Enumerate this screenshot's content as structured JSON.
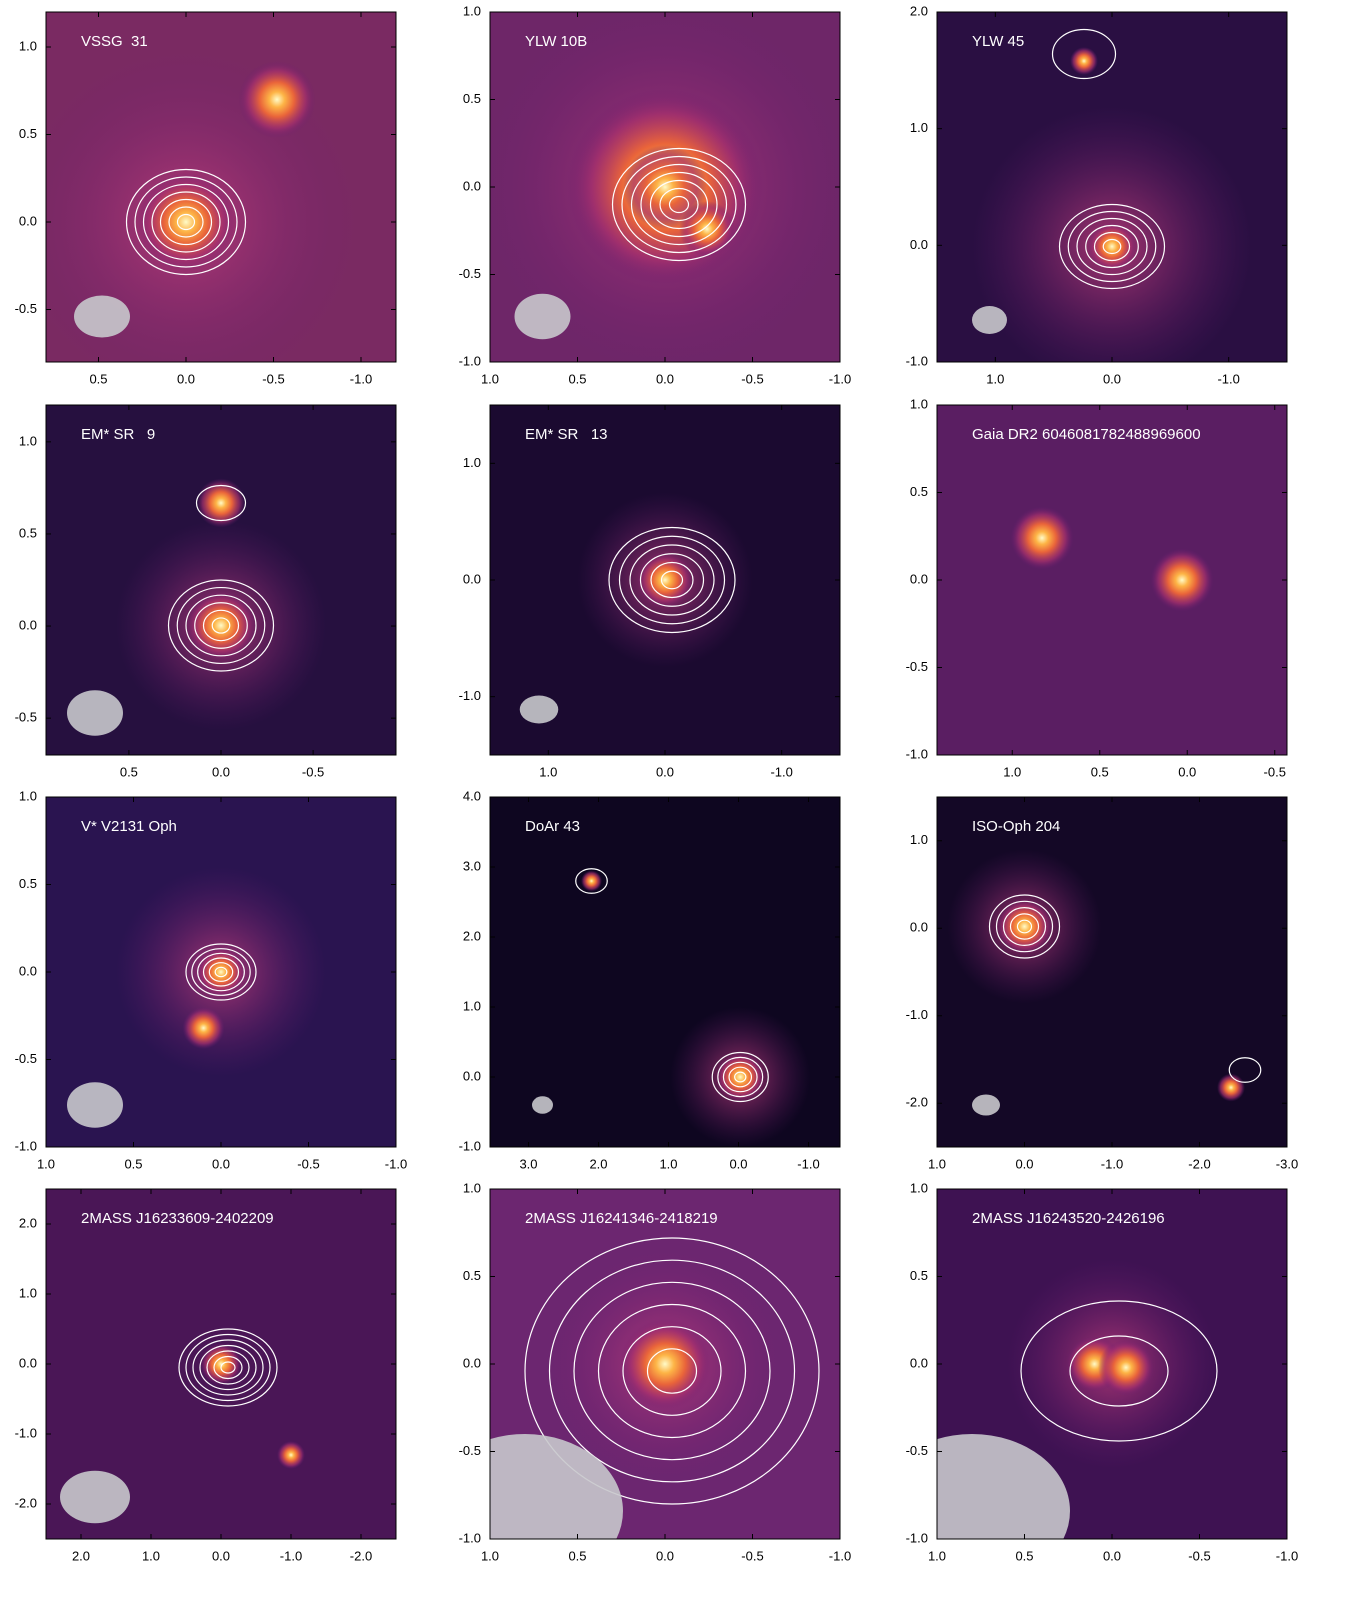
{
  "chart_data": [
    {
      "type": "image",
      "title": "VSSG  31",
      "xlim": [
        0.8,
        -1.2
      ],
      "ylim": [
        -0.8,
        1.2
      ],
      "xticks": [
        0.5,
        {
          "value": 0,
          "label": "0.0"
        },
        -0.5,
        {
          "value": -1,
          "label": "-1.0"
        }
      ],
      "yticks": [
        -0.5,
        {
          "value": 0,
          "label": "0.0"
        },
        0.5,
        {
          "value": 1,
          "label": "1.0"
        }
      ]
    },
    {
      "type": "image",
      "title": "YLW 10B",
      "xlim": [
        1,
        -1
      ],
      "ylim": [
        -1,
        1
      ],
      "xticks": [
        {
          "value": 1,
          "label": "1.0"
        },
        0.5,
        {
          "value": 0,
          "label": "0.0"
        },
        -0.5,
        {
          "value": -1,
          "label": "-1.0"
        }
      ],
      "yticks": [
        {
          "value": -1,
          "label": "-1.0"
        },
        -0.5,
        {
          "value": 0,
          "label": "0.0"
        },
        0.5,
        {
          "value": 1,
          "label": "1.0"
        }
      ]
    },
    {
      "type": "image",
      "title": "YLW 45",
      "xlim": [
        1.5,
        -1.5
      ],
      "ylim": [
        -1,
        2
      ],
      "xticks": [
        {
          "value": 1,
          "label": "1.0"
        },
        {
          "value": 0,
          "label": "0.0"
        },
        {
          "value": -1,
          "label": "-1.0"
        }
      ],
      "yticks": [
        {
          "value": -1,
          "label": "-1.0"
        },
        {
          "value": 0,
          "label": "0.0"
        },
        {
          "value": 1,
          "label": "1.0"
        },
        {
          "value": 2,
          "label": "2.0"
        }
      ]
    },
    {
      "type": "image",
      "title": "EM* SR   9",
      "xlim": [
        0.95,
        -0.95
      ],
      "ylim": [
        -0.7,
        1.2
      ],
      "xticks": [
        0.5,
        {
          "value": 0,
          "label": "0.0"
        },
        -0.5
      ],
      "yticks": [
        -0.5,
        {
          "value": 0,
          "label": "0.0"
        },
        0.5,
        {
          "value": 1,
          "label": "1.0"
        }
      ]
    },
    {
      "type": "image",
      "title": "EM* SR   13",
      "xlim": [
        1.5,
        -1.5
      ],
      "ylim": [
        -1.5,
        1.5
      ],
      "xticks": [
        {
          "value": 1,
          "label": "1.0"
        },
        {
          "value": 0,
          "label": "0.0"
        },
        {
          "value": -1,
          "label": "-1.0"
        }
      ],
      "yticks": [
        {
          "value": -1,
          "label": "-1.0"
        },
        {
          "value": 0,
          "label": "0.0"
        },
        {
          "value": 1,
          "label": "1.0"
        }
      ]
    },
    {
      "type": "image",
      "title": "Gaia DR2 6046081782488969600",
      "xlim": [
        1.43,
        -0.57
      ],
      "ylim": [
        -1,
        1
      ],
      "xticks": [
        {
          "value": 1,
          "label": "1.0"
        },
        0.5,
        {
          "value": 0,
          "label": "0.0"
        },
        -0.5
      ],
      "yticks": [
        {
          "value": -1,
          "label": "-1.0"
        },
        -0.5,
        {
          "value": 0,
          "label": "0.0"
        },
        0.5,
        {
          "value": 1,
          "label": "1.0"
        }
      ]
    },
    {
      "type": "image",
      "title": "V* V2131 Oph",
      "xlim": [
        1,
        -1
      ],
      "ylim": [
        -1,
        1
      ],
      "xticks": [
        {
          "value": 1,
          "label": "1.0"
        },
        0.5,
        {
          "value": 0,
          "label": "0.0"
        },
        -0.5,
        {
          "value": -1,
          "label": "-1.0"
        }
      ],
      "yticks": [
        {
          "value": -1,
          "label": "-1.0"
        },
        -0.5,
        {
          "value": 0,
          "label": "0.0"
        },
        0.5,
        {
          "value": 1,
          "label": "1.0"
        }
      ]
    },
    {
      "type": "image",
      "title": "DoAr 43",
      "xlim": [
        3.55,
        -1.45
      ],
      "ylim": [
        -1,
        4
      ],
      "xticks": [
        {
          "value": 3,
          "label": "3.0"
        },
        {
          "value": 2,
          "label": "2.0"
        },
        {
          "value": 1,
          "label": "1.0"
        },
        {
          "value": 0,
          "label": "0.0"
        },
        {
          "value": -1,
          "label": "-1.0"
        }
      ],
      "yticks": [
        {
          "value": -1,
          "label": "-1.0"
        },
        {
          "value": 0,
          "label": "0.0"
        },
        {
          "value": 1,
          "label": "1.0"
        },
        {
          "value": 2,
          "label": "2.0"
        },
        {
          "value": 3,
          "label": "3.0"
        },
        {
          "value": 4,
          "label": "4.0"
        }
      ]
    },
    {
      "type": "image",
      "title": "ISO-Oph 204",
      "xlim": [
        1,
        -3
      ],
      "ylim": [
        -2.5,
        1.5
      ],
      "xticks": [
        {
          "value": 1,
          "label": "1.0"
        },
        {
          "value": 0,
          "label": "0.0"
        },
        {
          "value": -1,
          "label": "-1.0"
        },
        {
          "value": -2,
          "label": "-2.0"
        },
        {
          "value": -3,
          "label": "-3.0"
        }
      ],
      "yticks": [
        {
          "value": -2,
          "label": "-2.0"
        },
        {
          "value": -1,
          "label": "-1.0"
        },
        {
          "value": 0,
          "label": "0.0"
        },
        {
          "value": 1,
          "label": "1.0"
        }
      ]
    },
    {
      "type": "image",
      "title": "2MASS J16233609-2402209",
      "xlim": [
        2.5,
        -2.5
      ],
      "ylim": [
        -2.5,
        2.5
      ],
      "xticks": [
        {
          "value": 2,
          "label": "2.0"
        },
        {
          "value": 1,
          "label": "1.0"
        },
        {
          "value": 0,
          "label": "0.0"
        },
        {
          "value": -1,
          "label": "-1.0"
        },
        {
          "value": -2,
          "label": "-2.0"
        }
      ],
      "yticks": [
        {
          "value": -2,
          "label": "-2.0"
        },
        {
          "value": -1,
          "label": "-1.0"
        },
        {
          "value": 0,
          "label": "0.0"
        },
        {
          "value": 1,
          "label": "1.0"
        },
        {
          "value": 2,
          "label": "2.0"
        }
      ]
    },
    {
      "type": "image",
      "title": "2MASS J16241346-2418219",
      "xlim": [
        1,
        -1
      ],
      "ylim": [
        -1,
        1
      ],
      "xticks": [
        {
          "value": 1,
          "label": "1.0"
        },
        0.5,
        {
          "value": 0,
          "label": "0.0"
        },
        -0.5,
        {
          "value": -1,
          "label": "-1.0"
        }
      ],
      "yticks": [
        {
          "value": -1,
          "label": "-1.0"
        },
        -0.5,
        {
          "value": 0,
          "label": "0.0"
        },
        0.5,
        {
          "value": 1,
          "label": "1.0"
        }
      ]
    },
    {
      "type": "image",
      "title": "2MASS J16243520-2426196",
      "xlim": [
        1,
        -1
      ],
      "ylim": [
        -1,
        1
      ],
      "xticks": [
        {
          "value": 1,
          "label": "1.0"
        },
        0.5,
        {
          "value": 0,
          "label": "0.0"
        },
        -0.5,
        {
          "value": -1,
          "label": "-1.0"
        }
      ],
      "yticks": [
        {
          "value": -1,
          "label": "-1.0"
        },
        -0.5,
        {
          "value": 0,
          "label": "0.0"
        },
        0.5,
        {
          "value": 1,
          "label": "1.0"
        }
      ]
    }
  ]
}
